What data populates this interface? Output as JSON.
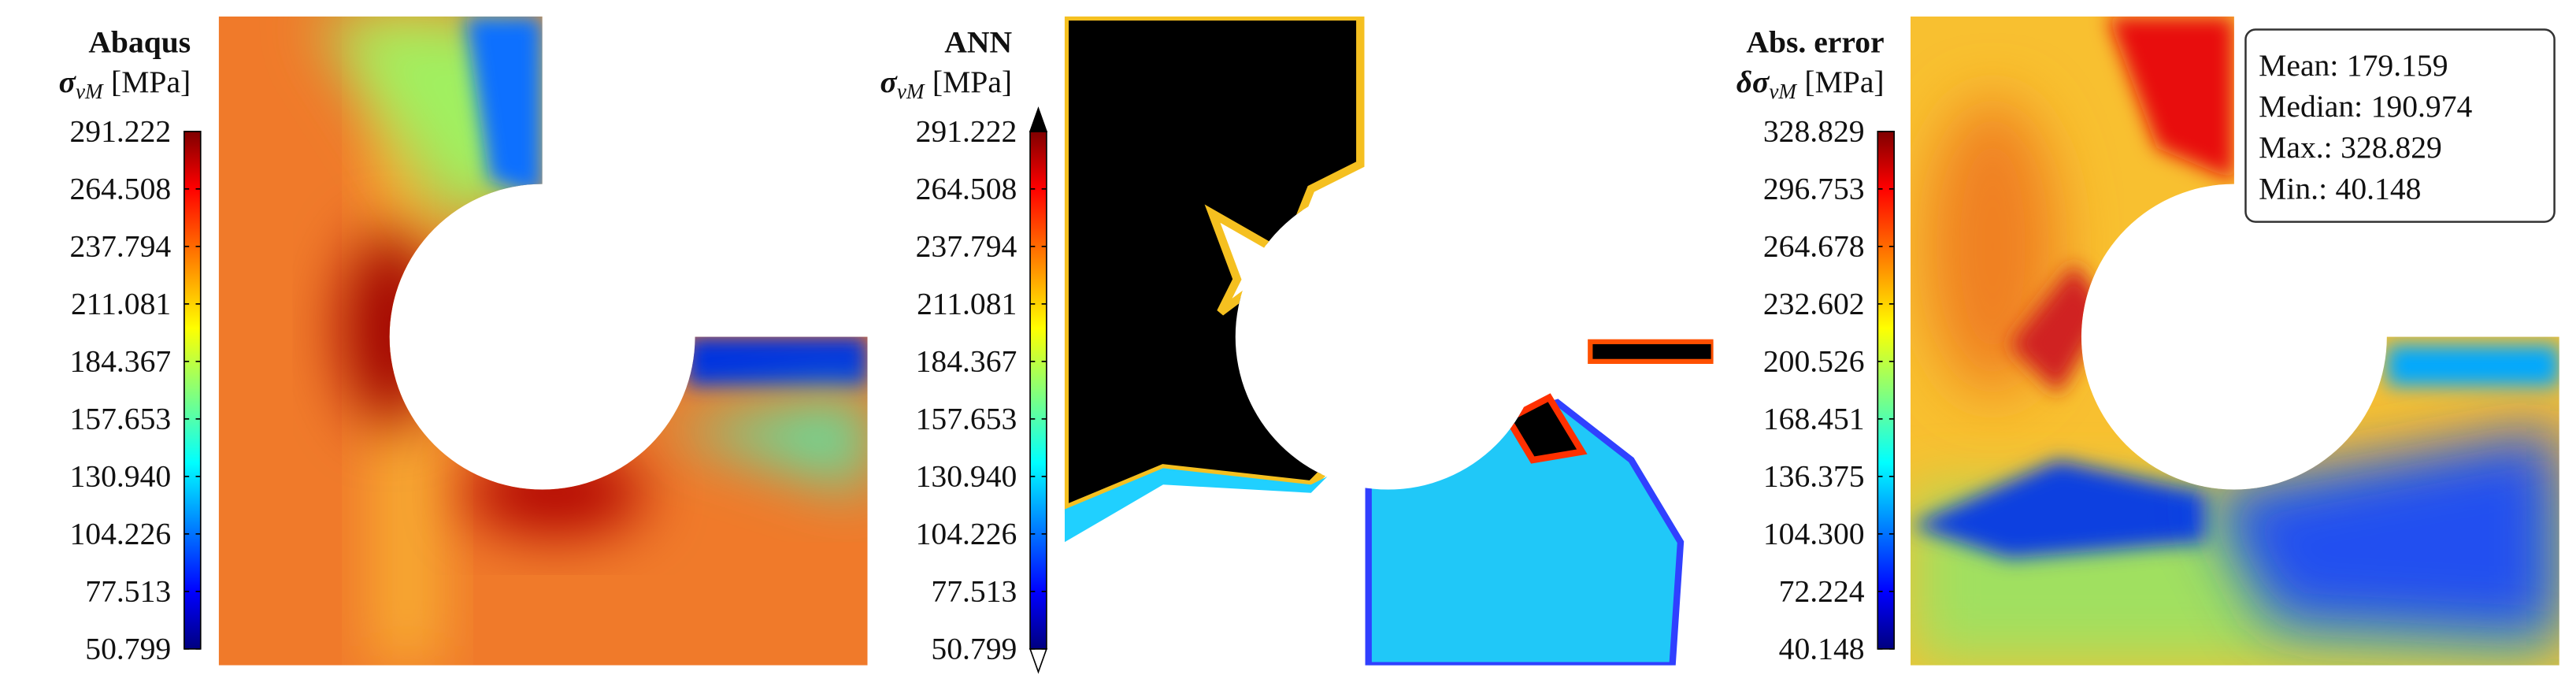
{
  "panels": [
    {
      "title": "Abaqus",
      "symbol": "σ",
      "subscript": "vM",
      "unit": "[MPa]",
      "colorbar": {
        "lim": [
          50.799,
          291.222
        ],
        "extend": "neither",
        "ticks": [
          50.799,
          77.513,
          104.226,
          {
            "value": 130.94,
            "label": "130.940"
          },
          157.653,
          184.367,
          211.081,
          237.794,
          264.508,
          291.222
        ]
      }
    },
    {
      "title": "ANN",
      "symbol": "σ",
      "subscript": "vM",
      "unit": "[MPa]",
      "colorbar": {
        "lim": [
          50.799,
          291.222
        ],
        "extend": "both",
        "ticks": [
          50.799,
          77.513,
          104.226,
          {
            "value": 130.94,
            "label": "130.940"
          },
          157.653,
          184.367,
          211.081,
          237.794,
          264.508,
          291.222
        ]
      }
    },
    {
      "title": "Abs. error",
      "symbol": "δσ",
      "subscript": "vM",
      "unit": "[MPa]",
      "colorbar": {
        "lim": [
          40.148,
          328.829
        ],
        "extend": "neither",
        "ticks": [
          40.148,
          72.224,
          {
            "value": 104.3,
            "label": "104.300"
          },
          136.375,
          168.451,
          200.526,
          232.602,
          264.678,
          296.753,
          328.829
        ]
      },
      "stats": [
        {
          "label": "Mean:",
          "value": 179.159
        },
        {
          "label": "Median:",
          "value": 190.974
        },
        {
          "label": "Max.:",
          "value": 328.829
        },
        {
          "label": "Min.:",
          "value": 40.148
        }
      ]
    }
  ]
}
